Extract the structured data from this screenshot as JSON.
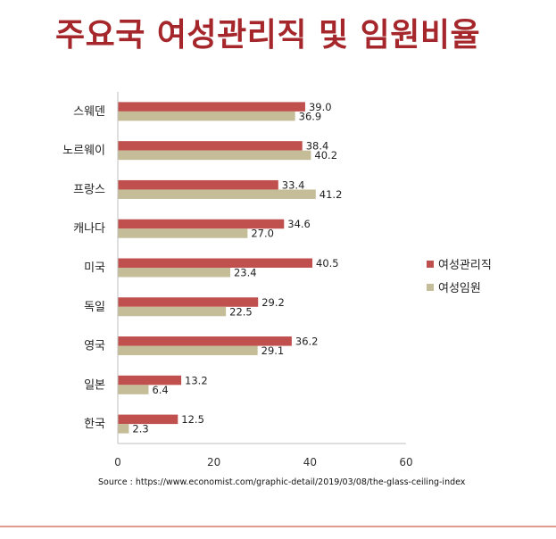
{
  "title": "주요국 여성관리직 및 임원비율",
  "source": "Source : https://www.economist.com/graphic-detail/2019/03/08/the-glass-ceiling-index",
  "colors": {
    "title": "#a5272b",
    "series_manager": "#c0504d",
    "series_executive": "#c4bd97",
    "axis": "#bfbfbf"
  },
  "chart_data": {
    "type": "bar",
    "orientation": "horizontal",
    "categories": [
      "스웨덴",
      "노르웨이",
      "프랑스",
      "캐나다",
      "미국",
      "독일",
      "영국",
      "일본",
      "한국"
    ],
    "series": [
      {
        "name": "여성관리직",
        "values": [
          39.0,
          38.4,
          33.4,
          34.6,
          40.5,
          29.2,
          36.2,
          13.2,
          12.5
        ]
      },
      {
        "name": "여성임원",
        "values": [
          36.9,
          40.2,
          41.2,
          27.0,
          23.4,
          22.5,
          29.1,
          6.4,
          2.3
        ]
      }
    ],
    "xlim": [
      0,
      60
    ],
    "xticks": [
      0,
      20,
      40,
      60
    ],
    "grid": false,
    "legend": "right"
  }
}
